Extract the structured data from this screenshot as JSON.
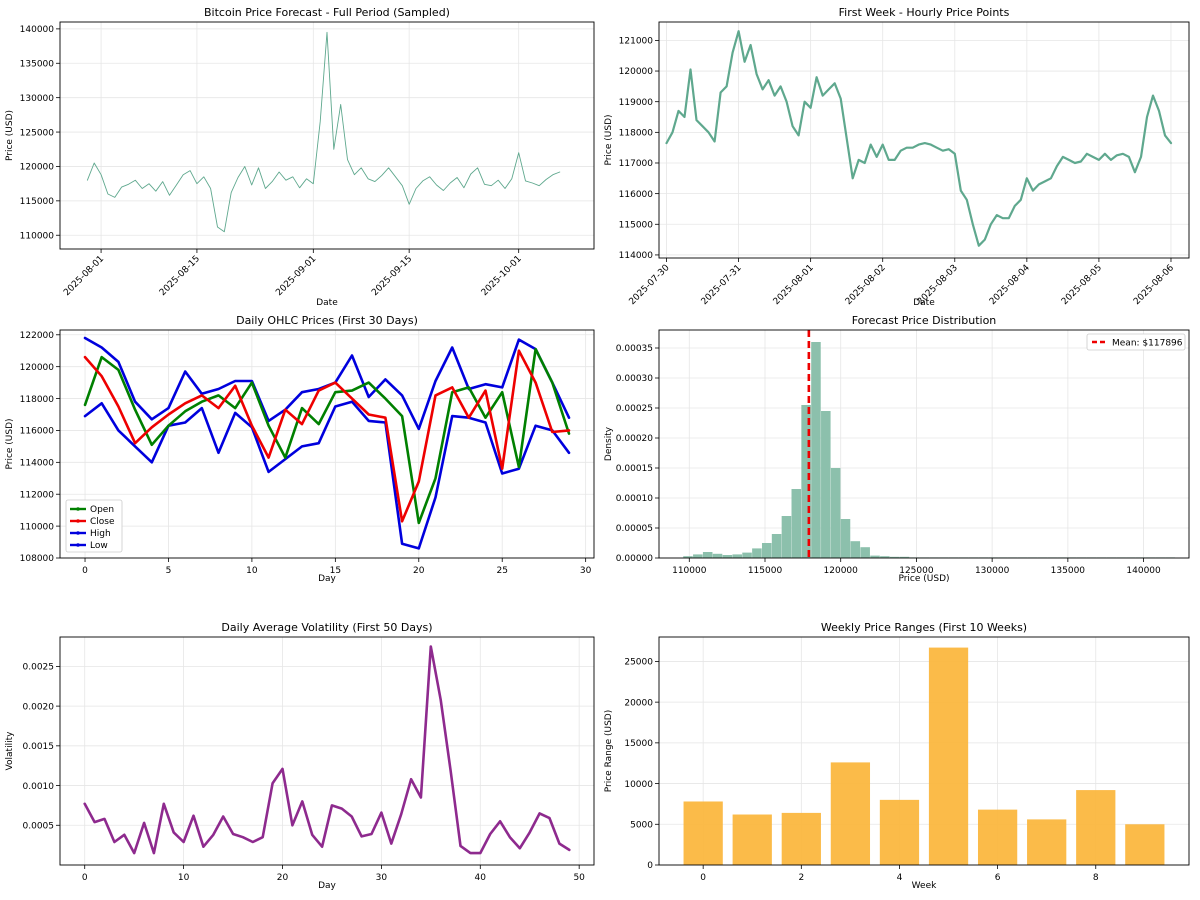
{
  "colors": {
    "teal": "#5fa88e",
    "hist": "#8cc0ac",
    "green": "#008000",
    "red": "#ee0000",
    "blue": "#0000dd",
    "purple": "#8e2a8e",
    "orange": "#fbb73f",
    "mean": "#ee0000"
  },
  "chart_data": [
    {
      "type": "line",
      "title": "Bitcoin Price Forecast - Full Period (Sampled)",
      "xlabel": "Date",
      "ylabel": "Price (USD)",
      "xlim": [
        "2025-07-26",
        "2025-10-12"
      ],
      "ylim": [
        108000,
        141000
      ],
      "xticks": [
        "2025-08-01",
        "2025-08-15",
        "2025-09-01",
        "2025-09-15",
        "2025-10-01"
      ],
      "yticks": [
        110000,
        115000,
        120000,
        125000,
        130000,
        135000,
        140000
      ],
      "grid": true,
      "series": [
        {
          "x": [
            "2025-07-30",
            "2025-07-31",
            "2025-08-01",
            "2025-08-02",
            "2025-08-03",
            "2025-08-04",
            "2025-08-05",
            "2025-08-06",
            "2025-08-07",
            "2025-08-08",
            "2025-08-09",
            "2025-08-10",
            "2025-08-11",
            "2025-08-12",
            "2025-08-13",
            "2025-08-14",
            "2025-08-15",
            "2025-08-16",
            "2025-08-17",
            "2025-08-18",
            "2025-08-19",
            "2025-08-20",
            "2025-08-21",
            "2025-08-22",
            "2025-08-23",
            "2025-08-24",
            "2025-08-25",
            "2025-08-26",
            "2025-08-27",
            "2025-08-28",
            "2025-08-29",
            "2025-08-30",
            "2025-08-31",
            "2025-09-01",
            "2025-09-02",
            "2025-09-03",
            "2025-09-04",
            "2025-09-05",
            "2025-09-06",
            "2025-09-07",
            "2025-09-08",
            "2025-09-09",
            "2025-09-10",
            "2025-09-11",
            "2025-09-12",
            "2025-09-13",
            "2025-09-14",
            "2025-09-15",
            "2025-09-16",
            "2025-09-17",
            "2025-09-18",
            "2025-09-19",
            "2025-09-20",
            "2025-09-21",
            "2025-09-22",
            "2025-09-23",
            "2025-09-24",
            "2025-09-25",
            "2025-09-26",
            "2025-09-27",
            "2025-09-28",
            "2025-09-29",
            "2025-09-30",
            "2025-10-01",
            "2025-10-02",
            "2025-10-03",
            "2025-10-04",
            "2025-10-05",
            "2025-10-06",
            "2025-10-07"
          ],
          "y": [
            118000,
            120500,
            118800,
            116000,
            115500,
            117000,
            117400,
            118000,
            116800,
            117500,
            116400,
            117800,
            115800,
            117300,
            118800,
            119400,
            117500,
            118500,
            116800,
            111200,
            110500,
            116200,
            118400,
            120000,
            117300,
            119800,
            116800,
            117800,
            119200,
            118000,
            118500,
            116900,
            118200,
            117500,
            126500,
            139500,
            122500,
            129000,
            121000,
            118800,
            119800,
            118200,
            117800,
            118700,
            119800,
            118500,
            117200,
            114500,
            116800,
            117900,
            118500,
            117300,
            116500,
            117600,
            118400,
            116900,
            118900,
            119800,
            117400,
            117200,
            118000,
            116800,
            118200,
            122000,
            117900,
            117600,
            117200,
            118100,
            118800,
            119200
          ]
        }
      ]
    },
    {
      "type": "line",
      "title": "First Week - Hourly Price Points",
      "xlabel": "Date",
      "ylabel": "Price (USD)",
      "xlim": [
        "2025-07-29T21:30",
        "2025-08-06T06:00"
      ],
      "ylim": [
        113900,
        121600
      ],
      "xticks": [
        "2025-07-30",
        "2025-07-31",
        "2025-08-01",
        "2025-08-02",
        "2025-08-03",
        "2025-08-04",
        "2025-08-05",
        "2025-08-06"
      ],
      "yticks": [
        114000,
        115000,
        116000,
        117000,
        118000,
        119000,
        120000,
        121000
      ],
      "grid": true,
      "series": [
        {
          "x_hours": [
            0,
            2,
            4,
            6,
            8,
            10,
            12,
            14,
            16,
            18,
            20,
            22,
            24,
            26,
            28,
            30,
            32,
            34,
            36,
            38,
            40,
            42,
            44,
            46,
            48,
            50,
            52,
            54,
            56,
            58,
            60,
            62,
            64,
            66,
            68,
            70,
            72,
            74,
            76,
            78,
            80,
            82,
            84,
            86,
            88,
            90,
            92,
            94,
            96,
            98,
            100,
            102,
            104,
            106,
            108,
            110,
            112,
            114,
            116,
            118,
            120,
            122,
            124,
            126,
            128,
            130,
            132,
            134,
            136,
            138,
            140,
            142,
            144,
            146,
            148,
            150,
            152,
            154,
            156,
            158,
            160,
            162,
            164,
            166,
            168
          ],
          "y": [
            117650,
            118000,
            118700,
            118500,
            120050,
            118400,
            118200,
            118000,
            117700,
            119300,
            119500,
            120600,
            121300,
            120300,
            120850,
            119900,
            119400,
            119700,
            119200,
            119500,
            119000,
            118200,
            117900,
            119000,
            118800,
            119800,
            119200,
            119400,
            119600,
            119100,
            117800,
            116500,
            117100,
            117000,
            117600,
            117200,
            117600,
            117100,
            117100,
            117400,
            117500,
            117500,
            117600,
            117650,
            117600,
            117500,
            117400,
            117450,
            117300,
            116100,
            115800,
            115000,
            114300,
            114500,
            115000,
            115300,
            115200,
            115200,
            115600,
            115800,
            116500,
            116100,
            116300,
            116400,
            116500,
            116900,
            117200,
            117100,
            117000,
            117050,
            117300,
            117200,
            117100,
            117300,
            117100,
            117250,
            117300,
            117200,
            116700,
            117200,
            118500,
            119200,
            118700,
            117900,
            117650
          ]
        }
      ]
    },
    {
      "type": "line",
      "title": "Daily OHLC Prices (First 30 Days)",
      "xlabel": "Day",
      "ylabel": "Price (USD)",
      "xlim": [
        -1.5,
        30.5
      ],
      "ylim": [
        108000,
        122300
      ],
      "xticks": [
        0,
        5,
        10,
        15,
        20,
        25,
        30
      ],
      "yticks": [
        108000,
        110000,
        112000,
        114000,
        116000,
        118000,
        120000,
        122000
      ],
      "grid": true,
      "legend": "lower-left",
      "series": [
        {
          "name": "Open",
          "values": [
            117600,
            120600,
            119800,
            117300,
            115100,
            116300,
            117200,
            117800,
            118200,
            117400,
            119000,
            116300,
            114300,
            117400,
            116400,
            118400,
            118500,
            119000,
            118000,
            116900,
            110200,
            113000,
            118400,
            118700,
            116800,
            118400,
            113700,
            121100,
            119000,
            115800
          ]
        },
        {
          "name": "Close",
          "values": [
            120600,
            119400,
            117500,
            115200,
            116200,
            117000,
            117700,
            118200,
            117400,
            118800,
            116300,
            114300,
            117300,
            116400,
            118500,
            119000,
            118000,
            117000,
            116800,
            110300,
            112800,
            118200,
            118700,
            116800,
            118500,
            113600,
            121000,
            119000,
            115900,
            116000
          ]
        },
        {
          "name": "High",
          "values": [
            121800,
            121200,
            120300,
            117800,
            116700,
            117400,
            119700,
            118300,
            118600,
            119100,
            119100,
            116600,
            117300,
            118400,
            118600,
            119000,
            120700,
            118100,
            119200,
            118200,
            116100,
            119100,
            121200,
            118600,
            118900,
            118700,
            121700,
            121100,
            119000,
            116800
          ]
        },
        {
          "name": "Low",
          "values": [
            116900,
            117700,
            116000,
            115000,
            114000,
            116300,
            116500,
            117400,
            114600,
            117100,
            116200,
            113400,
            114200,
            115000,
            115200,
            117500,
            117800,
            116600,
            116500,
            108900,
            108600,
            111800,
            116900,
            116800,
            116500,
            113300,
            113600,
            116300,
            116000,
            114600
          ]
        }
      ]
    },
    {
      "type": "histogram",
      "title": "Forecast Price Distribution",
      "xlabel": "Price (USD)",
      "ylabel": "Density",
      "xlim": [
        108000,
        143000
      ],
      "ylim": [
        0,
        0.00038
      ],
      "xticks": [
        110000,
        115000,
        120000,
        125000,
        130000,
        135000,
        140000
      ],
      "yticks": [
        0,
        5e-05,
        0.0001,
        0.00015,
        0.0002,
        0.00025,
        0.0003,
        0.00035
      ],
      "grid": true,
      "legend": "top-right",
      "bin_start": 109600,
      "bin_width": 650,
      "densities": [
        3e-06,
        6e-06,
        1e-05,
        7e-06,
        5e-06,
        6e-06,
        9e-06,
        1.6e-05,
        2.5e-05,
        4e-05,
        7e-05,
        0.000115,
        0.000255,
        0.00036,
        0.000245,
        0.00015,
        6.5e-05,
        2.8e-05,
        1.8e-05,
        4e-06,
        3e-06,
        2e-06,
        2e-06,
        1e-06,
        1e-06,
        1e-06,
        1e-06,
        1e-06,
        1e-06,
        1e-06,
        1e-06,
        1e-06,
        1e-06,
        1e-06,
        1e-06,
        1e-06,
        1e-06,
        1e-06,
        1e-06,
        1e-06,
        1e-06,
        1e-06,
        1e-06,
        1e-06,
        1e-06,
        1e-06,
        1e-06,
        1e-06,
        1e-06,
        1e-06
      ],
      "mean": 117896,
      "mean_label": "Mean: $117896"
    },
    {
      "type": "line",
      "title": "Daily Average Volatility (First 50 Days)",
      "xlabel": "Day",
      "ylabel": "Volatility",
      "xlim": [
        -2.5,
        51.5
      ],
      "ylim": [
        0.0,
        0.00287
      ],
      "xticks": [
        0,
        10,
        20,
        30,
        40,
        50
      ],
      "yticks": [
        0.0005,
        0.001,
        0.0015,
        0.002,
        0.0025
      ],
      "grid": true,
      "series": [
        {
          "values": [
            0.00077,
            0.00054,
            0.00058,
            0.00029,
            0.00038,
            0.00015,
            0.00053,
            0.00015,
            0.00077,
            0.00041,
            0.00029,
            0.00062,
            0.00023,
            0.00038,
            0.00061,
            0.00039,
            0.00035,
            0.00029,
            0.00035,
            0.00103,
            0.00121,
            0.0005,
            0.0008,
            0.00038,
            0.00023,
            0.00075,
            0.00071,
            0.00061,
            0.00036,
            0.00039,
            0.00066,
            0.00027,
            0.00064,
            0.00108,
            0.00085,
            0.00275,
            0.00208,
            0.00119,
            0.00024,
            0.00015,
            0.00015,
            0.00039,
            0.00055,
            0.00035,
            0.00021,
            0.00041,
            0.00065,
            0.00059,
            0.00027,
            0.00019
          ]
        }
      ]
    },
    {
      "type": "bar",
      "title": "Weekly Price Ranges (First 10 Weeks)",
      "xlabel": "Week",
      "ylabel": "Price Range (USD)",
      "xlim": [
        -0.9,
        9.9
      ],
      "ylim": [
        0,
        28000
      ],
      "xticks": [
        0,
        2,
        4,
        6,
        8
      ],
      "yticks": [
        0,
        5000,
        10000,
        15000,
        20000,
        25000
      ],
      "grid": true,
      "categories": [
        0,
        1,
        2,
        3,
        4,
        5,
        6,
        7,
        8,
        9
      ],
      "values": [
        7800,
        6200,
        6400,
        12600,
        8000,
        26700,
        6800,
        5600,
        9200,
        5000
      ]
    }
  ]
}
